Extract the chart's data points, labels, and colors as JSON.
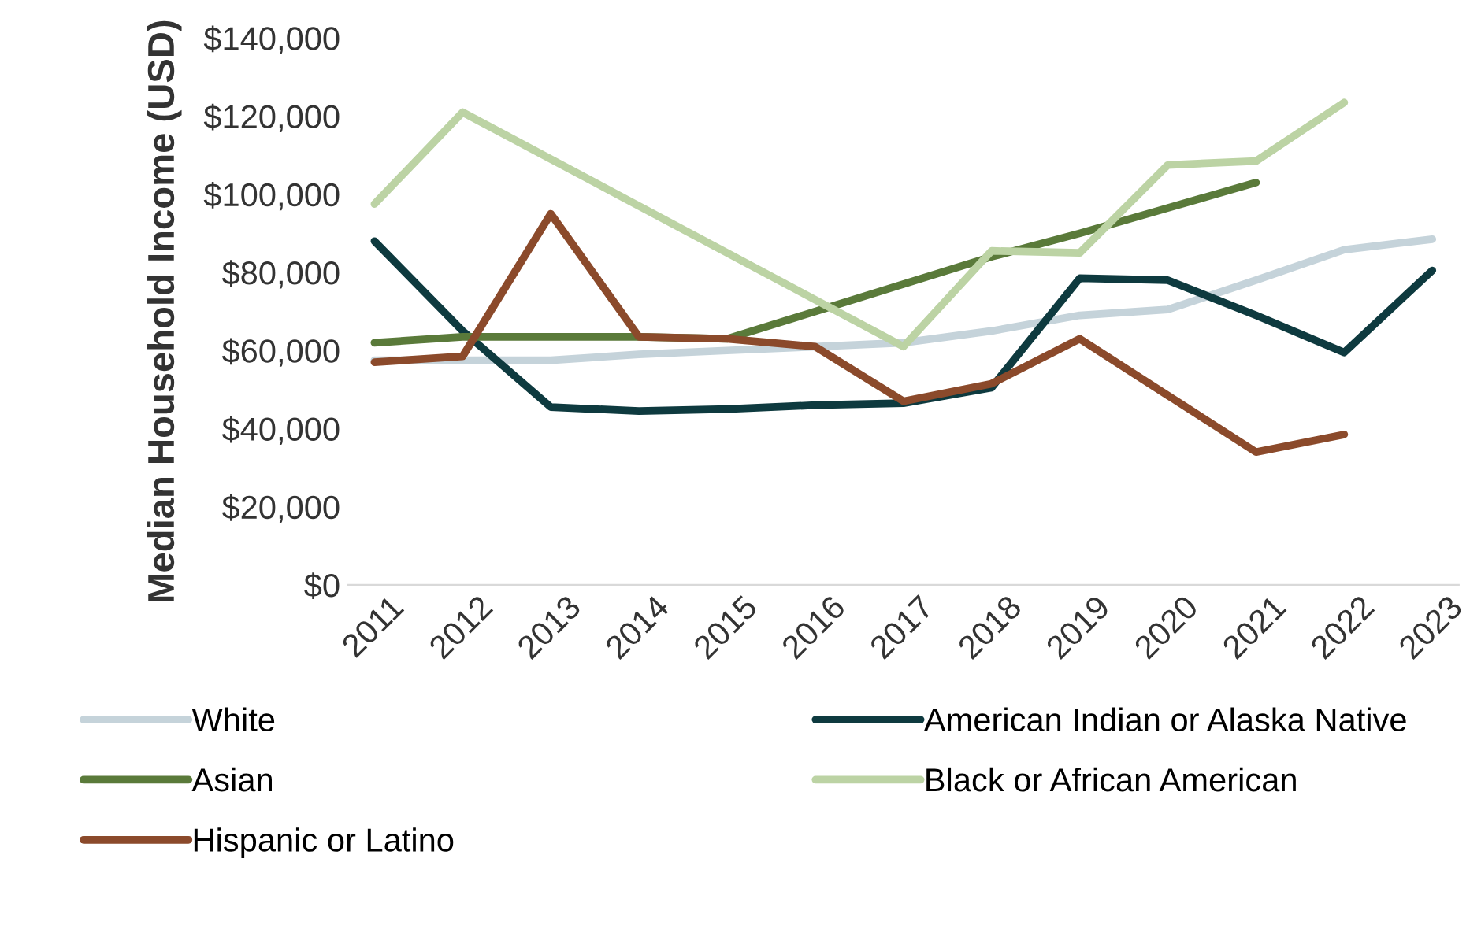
{
  "chart_data": {
    "type": "line",
    "ylabel": "Median Household Income (USD)",
    "categories": [
      "2011",
      "2012",
      "2013",
      "2014",
      "2015",
      "2016",
      "2017",
      "2018",
      "2019",
      "2020",
      "2021",
      "2022",
      "2023"
    ],
    "series": [
      {
        "name": "White",
        "color": "#c5d3da",
        "values": [
          57500,
          57500,
          57500,
          59000,
          60000,
          61000,
          62000,
          65000,
          69000,
          70500,
          78000,
          85800,
          88500
        ]
      },
      {
        "name": "American Indian or Alaska Native",
        "color": "#0e3a3f",
        "values": [
          88000,
          65000,
          45500,
          44500,
          45000,
          46000,
          46500,
          50500,
          78500,
          78000,
          69000,
          59500,
          80500
        ]
      },
      {
        "name": "Asian",
        "color": "#5a7a3a",
        "values": [
          62000,
          63500,
          63500,
          63500,
          63000,
          70000,
          77000,
          84000,
          90000,
          96500,
          103000,
          null,
          null
        ]
      },
      {
        "name": "Black or African American",
        "color": "#bcd3a4",
        "values": [
          97500,
          121000,
          null,
          null,
          null,
          null,
          61000,
          85500,
          85000,
          107500,
          108500,
          123500,
          null
        ]
      },
      {
        "name": "Hispanic or Latino",
        "color": "#8b4a2b",
        "values": [
          57000,
          58500,
          95000,
          63500,
          63000,
          61000,
          47000,
          51500,
          63000,
          48500,
          34000,
          38500,
          null
        ]
      }
    ],
    "ylim": [
      0,
      140000
    ],
    "yticks": [
      {
        "value": 0,
        "label": "$0"
      },
      {
        "value": 20000,
        "label": "$20,000"
      },
      {
        "value": 40000,
        "label": "$40,000"
      },
      {
        "value": 60000,
        "label": "$60,000"
      },
      {
        "value": 80000,
        "label": "$80,000"
      },
      {
        "value": 100000,
        "label": "$100,000"
      },
      {
        "value": 120000,
        "label": "$120,000"
      },
      {
        "value": 140000,
        "label": "$140,000"
      }
    ],
    "grid": false,
    "legend": "bottom",
    "marker": "none",
    "line_style": "solid"
  }
}
